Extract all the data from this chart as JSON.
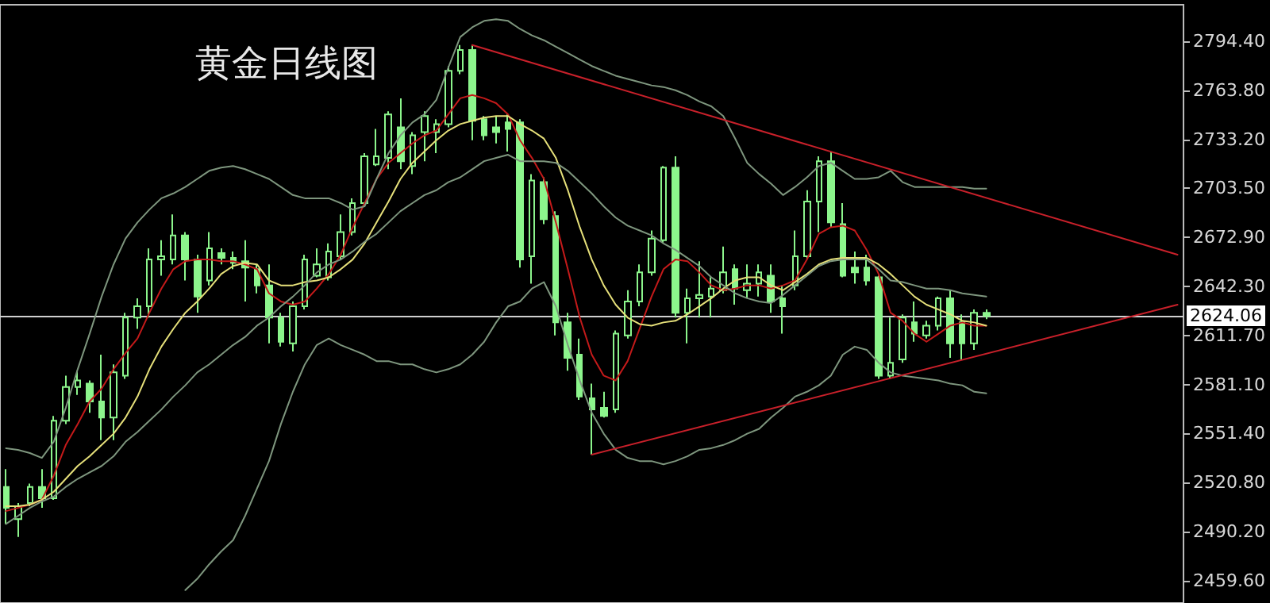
{
  "chart_data": {
    "type": "candlestick",
    "title": "黄金日线图",
    "categories": [
      null,
      null,
      null,
      null,
      null,
      null,
      null,
      null,
      null,
      null,
      null,
      null,
      null,
      null,
      null,
      null,
      null,
      null,
      null,
      null,
      null,
      null,
      null,
      null,
      null,
      null,
      null,
      null,
      null,
      null,
      null,
      null,
      null,
      null,
      null,
      null,
      null,
      null,
      null,
      null,
      null,
      null,
      null,
      null,
      null,
      null,
      null,
      null,
      null,
      null,
      null,
      null,
      null,
      null,
      null,
      null,
      null,
      null,
      null,
      null,
      null,
      null,
      null,
      null,
      null,
      null,
      null,
      null,
      null,
      null,
      null,
      null,
      null,
      null,
      null,
      null,
      null,
      null,
      null,
      null,
      null,
      null,
      null,
      null,
      null,
      null,
      null,
      null,
      null,
      null,
      null,
      null,
      null,
      null,
      null,
      null,
      null,
      null,
      null
    ],
    "ylim": [
      2446,
      2817
    ],
    "yticks": [
      {
        "value": 2459.6,
        "label": "2459.60"
      },
      {
        "value": 2490.2,
        "label": "2490.20"
      },
      {
        "value": 2520.8,
        "label": "2520.80"
      },
      {
        "value": 2551.4,
        "label": "2551.40"
      },
      {
        "value": 2581.1,
        "label": "2581.10"
      },
      {
        "value": 2611.7,
        "label": "2611.70"
      },
      {
        "value": 2642.3,
        "label": "2642.30"
      },
      {
        "value": 2672.9,
        "label": "2672.90"
      },
      {
        "value": 2703.5,
        "label": "2703.50"
      },
      {
        "value": 2733.2,
        "label": "2733.20"
      },
      {
        "value": 2763.8,
        "label": "2763.80"
      },
      {
        "value": 2794.4,
        "label": "2794.40"
      }
    ],
    "tick_labels": "y",
    "grid": false,
    "marker": "none",
    "ref_lines": [
      {
        "axis": "y",
        "value": 2624.06,
        "label": "2624.06",
        "color": "#d0d0d0"
      }
    ],
    "series": [
      {
        "type": "candlestick",
        "color": "#8cf58c",
        "ohlc": [
          [
            2518,
            2529,
            2495,
            2505
          ],
          [
            2498,
            2508,
            2487,
            2506
          ],
          [
            2508,
            2520,
            2506,
            2518
          ],
          [
            2518,
            2529,
            2505,
            2511
          ],
          [
            2511,
            2562,
            2510,
            2559
          ],
          [
            2559,
            2587,
            2557,
            2580
          ],
          [
            2580,
            2590,
            2575,
            2584
          ],
          [
            2582,
            2584,
            2564,
            2571
          ],
          [
            2571,
            2600,
            2547,
            2561
          ],
          [
            2561,
            2594,
            2547,
            2589
          ],
          [
            2587,
            2626,
            2585,
            2623
          ],
          [
            2623,
            2635,
            2616,
            2630
          ],
          [
            2630,
            2666,
            2623,
            2659
          ],
          [
            2659,
            2671,
            2649,
            2661
          ],
          [
            2659,
            2687,
            2656,
            2674
          ],
          [
            2674,
            2676,
            2646,
            2659
          ],
          [
            2659,
            2662,
            2626,
            2636
          ],
          [
            2646,
            2676,
            2643,
            2666
          ],
          [
            2663,
            2666,
            2656,
            2660
          ],
          [
            2660,
            2664,
            2653,
            2657
          ],
          [
            2658,
            2671,
            2633,
            2654
          ],
          [
            2653,
            2656,
            2638,
            2643
          ],
          [
            2643,
            2656,
            2607,
            2623
          ],
          [
            2623,
            2626,
            2605,
            2608
          ],
          [
            2607,
            2633,
            2602,
            2630
          ],
          [
            2630,
            2662,
            2628,
            2659
          ],
          [
            2649,
            2666,
            2648,
            2656
          ],
          [
            2648,
            2669,
            2646,
            2664
          ],
          [
            2661,
            2687,
            2659,
            2676
          ],
          [
            2676,
            2697,
            2674,
            2694
          ],
          [
            2694,
            2725,
            2692,
            2723
          ],
          [
            2718,
            2740,
            2717,
            2723
          ],
          [
            2722,
            2751,
            2715,
            2749
          ],
          [
            2741,
            2759,
            2715,
            2720
          ],
          [
            2717,
            2738,
            2712,
            2736
          ],
          [
            2738,
            2751,
            2720,
            2748
          ],
          [
            2738,
            2746,
            2725,
            2743
          ],
          [
            2743,
            2779,
            2741,
            2776
          ],
          [
            2776,
            2792,
            2774,
            2789
          ],
          [
            2789,
            2792,
            2733,
            2745
          ],
          [
            2746,
            2748,
            2733,
            2736
          ],
          [
            2741,
            2748,
            2731,
            2738
          ],
          [
            2744,
            2749,
            2726,
            2740
          ],
          [
            2744,
            2746,
            2654,
            2659
          ],
          [
            2661,
            2712,
            2644,
            2708
          ],
          [
            2707,
            2710,
            2681,
            2684
          ],
          [
            2686,
            2689,
            2612,
            2620
          ],
          [
            2620,
            2626,
            2590,
            2598
          ],
          [
            2600,
            2610,
            2572,
            2574
          ],
          [
            2573,
            2582,
            2538,
            2566
          ],
          [
            2567,
            2577,
            2561,
            2562
          ],
          [
            2566,
            2615,
            2564,
            2613
          ],
          [
            2612,
            2640,
            2610,
            2633
          ],
          [
            2633,
            2656,
            2630,
            2651
          ],
          [
            2651,
            2677,
            2649,
            2672
          ],
          [
            2671,
            2717,
            2669,
            2716
          ],
          [
            2716,
            2723,
            2623,
            2626
          ],
          [
            2626,
            2641,
            2607,
            2635
          ],
          [
            2635,
            2658,
            2623,
            2637
          ],
          [
            2636,
            2648,
            2623,
            2641
          ],
          [
            2640,
            2667,
            2638,
            2651
          ],
          [
            2653,
            2656,
            2631,
            2641
          ],
          [
            2640,
            2656,
            2635,
            2644
          ],
          [
            2644,
            2656,
            2636,
            2651
          ],
          [
            2649,
            2656,
            2626,
            2633
          ],
          [
            2635,
            2643,
            2613,
            2630
          ],
          [
            2643,
            2677,
            2640,
            2661
          ],
          [
            2661,
            2702,
            2659,
            2695
          ],
          [
            2695,
            2723,
            2676,
            2720
          ],
          [
            2720,
            2726,
            2679,
            2682
          ],
          [
            2681,
            2694,
            2648,
            2649
          ],
          [
            2654,
            2664,
            2644,
            2651
          ],
          [
            2654,
            2662,
            2643,
            2646
          ],
          [
            2648,
            2649,
            2585,
            2587
          ],
          [
            2587,
            2623,
            2585,
            2595
          ],
          [
            2597,
            2625,
            2595,
            2623
          ],
          [
            2620,
            2633,
            2608,
            2613
          ],
          [
            2612,
            2621,
            2610,
            2618
          ],
          [
            2618,
            2636,
            2615,
            2635
          ],
          [
            2635,
            2640,
            2598,
            2607
          ],
          [
            2620,
            2625,
            2597,
            2607
          ],
          [
            2607,
            2628,
            2603,
            2626
          ],
          [
            2626,
            2628,
            2622,
            2624
          ],
          null,
          null,
          null,
          null,
          null,
          null,
          null,
          null,
          null,
          null,
          null,
          null,
          null,
          null,
          null,
          null
        ]
      },
      {
        "type": "line",
        "color": "#c41a1a",
        "values": [
          2503,
          2505,
          2507,
          2510,
          2525,
          2544,
          2557,
          2571,
          2579,
          2591,
          2601,
          2610,
          2626,
          2641,
          2653,
          2658,
          2659,
          2659,
          2658,
          2658,
          2656,
          2653,
          2638,
          2633,
          2631,
          2633,
          2641,
          2650,
          2662,
          2679,
          2694,
          2709,
          2719,
          2725,
          2731,
          2736,
          2739,
          2749,
          2759,
          2761,
          2759,
          2756,
          2749,
          2733,
          2722,
          2709,
          2682,
          2653,
          2623,
          2600,
          2587,
          2584,
          2596,
          2616,
          2636,
          2653,
          2659,
          2658,
          2651,
          2643,
          2640,
          2641,
          2643,
          2643,
          2641,
          2643,
          2646,
          2659,
          2675,
          2679,
          2680,
          2677,
          2665,
          2650,
          2626,
          2621,
          2613,
          2608,
          2613,
          2618,
          2620,
          2618,
          2618,
          null,
          null,
          null,
          null,
          null,
          null,
          null,
          null,
          null,
          null,
          null,
          null,
          null,
          null,
          null,
          null
        ]
      },
      {
        "type": "line",
        "color": "#e6e07a",
        "values": [
          2506,
          2506,
          2507,
          2510,
          2515,
          2523,
          2531,
          2537,
          2544,
          2551,
          2561,
          2574,
          2591,
          2605,
          2616,
          2626,
          2633,
          2641,
          2650,
          2655,
          2657,
          2656,
          2646,
          2643,
          2643,
          2645,
          2646,
          2648,
          2653,
          2659,
          2669,
          2682,
          2695,
          2709,
          2719,
          2726,
          2733,
          2739,
          2743,
          2745,
          2747,
          2748,
          2748,
          2743,
          2739,
          2734,
          2722,
          2702,
          2679,
          2659,
          2643,
          2631,
          2623,
          2619,
          2618,
          2620,
          2621,
          2625,
          2630,
          2635,
          2641,
          2646,
          2648,
          2648,
          2643,
          2640,
          2645,
          2650,
          2656,
          2659,
          2660,
          2660,
          2660,
          2656,
          2650,
          2643,
          2636,
          2631,
          2628,
          2625,
          2621,
          2620,
          2618,
          null,
          null,
          null,
          null,
          null,
          null,
          null,
          null,
          null,
          null,
          null,
          null,
          null,
          null,
          null,
          null
        ]
      },
      {
        "type": "line",
        "color": "#7e967e",
        "values": [
          2542,
          2541,
          2539,
          2536,
          2546,
          2567,
          2591,
          2613,
          2636,
          2656,
          2672,
          2682,
          2690,
          2697,
          2700,
          2704,
          2709,
          2714,
          2716,
          2717,
          2715,
          2712,
          2709,
          2704,
          2699,
          2697,
          2697,
          2697,
          2694,
          2690,
          2692,
          2709,
          2725,
          2736,
          2744,
          2749,
          2758,
          2778,
          2797,
          2803,
          2807,
          2808,
          2807,
          2802,
          2798,
          2795,
          2791,
          2787,
          2783,
          2779,
          2776,
          2773,
          2771,
          2769,
          2767,
          2766,
          2764,
          2761,
          2757,
          2754,
          2748,
          2734,
          2719,
          2712,
          2706,
          2699,
          2704,
          2710,
          2717,
          2719,
          2714,
          2709,
          2709,
          2710,
          2714,
          2707,
          2704,
          2704,
          2704,
          2704,
          2704,
          2703,
          2703,
          null,
          null,
          null,
          null,
          null,
          null,
          null,
          null,
          null,
          null,
          null,
          null,
          null,
          null,
          null,
          null
        ]
      },
      {
        "type": "line",
        "color": "#7e967e",
        "values": [
          2495,
          2500,
          2505,
          2509,
          2512,
          2518,
          2523,
          2527,
          2531,
          2537,
          2546,
          2552,
          2559,
          2566,
          2574,
          2581,
          2589,
          2594,
          2600,
          2606,
          2611,
          2618,
          2623,
          2630,
          2636,
          2643,
          2651,
          2656,
          2659,
          2664,
          2670,
          2675,
          2682,
          2689,
          2694,
          2699,
          2702,
          2707,
          2710,
          2715,
          2720,
          2722,
          2724,
          2720,
          2720,
          2720,
          2719,
          2714,
          2707,
          2700,
          2692,
          2685,
          2680,
          2677,
          2674,
          2669,
          2665,
          2660,
          2655,
          2648,
          2643,
          2638,
          2635,
          2633,
          2632,
          2637,
          2643,
          2649,
          2655,
          2658,
          2659,
          2659,
          2659,
          2653,
          2646,
          2645,
          2643,
          2641,
          2641,
          2640,
          2638,
          2637,
          2636,
          null,
          null,
          null,
          null,
          null,
          null,
          null,
          null,
          null,
          null,
          null,
          null,
          null,
          null,
          null,
          null
        ]
      },
      {
        "type": "line",
        "color": "#7e967e",
        "values": [
          null,
          null,
          null,
          null,
          null,
          null,
          null,
          null,
          null,
          null,
          null,
          null,
          null,
          null,
          null,
          2454,
          2461,
          2470,
          2478,
          2485,
          2500,
          2517,
          2534,
          2557,
          2577,
          2594,
          2606,
          2610,
          2606,
          2603,
          2600,
          2596,
          2596,
          2594,
          2594,
          2591,
          2589,
          2591,
          2594,
          2600,
          2608,
          2620,
          2630,
          2633,
          2641,
          2645,
          2630,
          2606,
          2584,
          2564,
          2551,
          2541,
          2536,
          2534,
          2534,
          2532,
          2534,
          2537,
          2541,
          2542,
          2544,
          2547,
          2551,
          2554,
          2561,
          2567,
          2574,
          2577,
          2581,
          2587,
          2600,
          2605,
          2603,
          2595,
          2589,
          2587,
          2586,
          2585,
          2584,
          2582,
          2581,
          2577,
          2576,
          null,
          null,
          null,
          null,
          null,
          null,
          null,
          null,
          null,
          null,
          null,
          null,
          null,
          null,
          null,
          null
        ]
      },
      {
        "type": "line",
        "color": "#c8202a",
        "values": [
          null,
          null,
          null,
          null,
          null,
          null,
          null,
          null,
          null,
          null,
          null,
          null,
          null,
          null,
          null,
          null,
          null,
          null,
          null,
          null,
          null,
          null,
          null,
          null,
          null,
          null,
          null,
          null,
          null,
          null,
          null,
          null,
          null,
          null,
          null,
          null,
          null,
          null,
          null,
          2792,
          null,
          null,
          null,
          null,
          null,
          null,
          null,
          null,
          null,
          null,
          null,
          null,
          null,
          null,
          null,
          null,
          null,
          null,
          null,
          null,
          null,
          null,
          null,
          null,
          null,
          null,
          null,
          null,
          null,
          null,
          null,
          null,
          null,
          null,
          null,
          null,
          null,
          null,
          null,
          null,
          null,
          null,
          null,
          null,
          null,
          null,
          null,
          null,
          null,
          null,
          null,
          null,
          null,
          null,
          null,
          null,
          null,
          null,
          2662
        ]
      },
      {
        "type": "line",
        "color": "#c8202a",
        "values": [
          null,
          null,
          null,
          null,
          null,
          null,
          null,
          null,
          null,
          null,
          null,
          null,
          null,
          null,
          null,
          null,
          null,
          null,
          null,
          null,
          null,
          null,
          null,
          null,
          null,
          null,
          null,
          null,
          null,
          null,
          null,
          null,
          null,
          null,
          null,
          null,
          null,
          null,
          null,
          null,
          null,
          null,
          null,
          null,
          null,
          null,
          null,
          null,
          null,
          2538,
          null,
          null,
          null,
          null,
          null,
          null,
          null,
          null,
          null,
          null,
          null,
          null,
          null,
          null,
          null,
          null,
          null,
          null,
          null,
          null,
          null,
          null,
          null,
          null,
          null,
          null,
          null,
          null,
          null,
          null,
          null,
          null,
          null,
          null,
          null,
          null,
          null,
          null,
          null,
          null,
          null,
          null,
          null,
          null,
          null,
          null,
          null,
          null,
          2631
        ]
      }
    ]
  }
}
